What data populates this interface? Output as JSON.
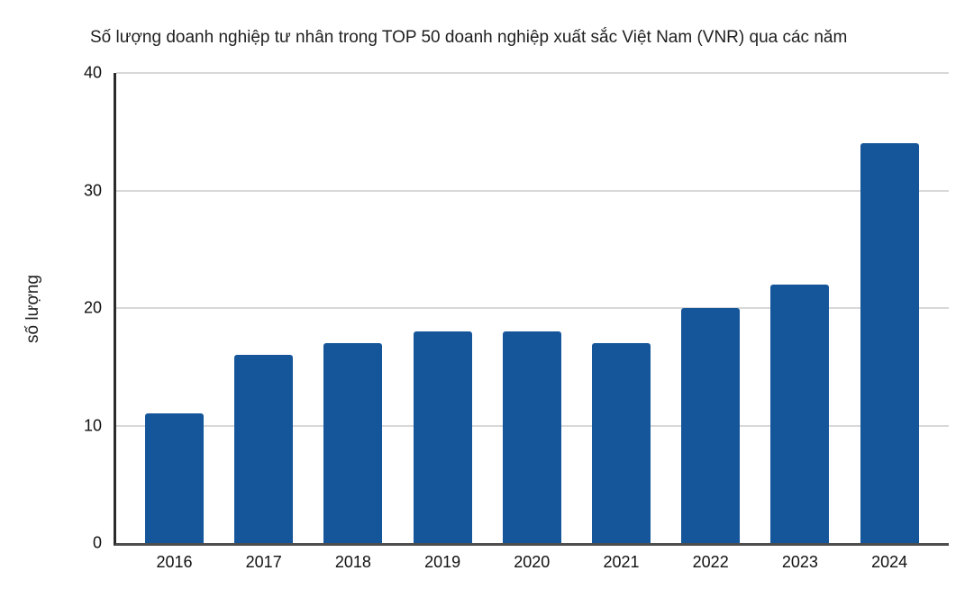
{
  "chart_data": {
    "type": "bar",
    "title": "Số lượng doanh nghiệp tư nhân trong TOP 50 doanh nghiệp xuất sắc Việt Nam (VNR) qua các năm",
    "xlabel": "",
    "ylabel": "số lượng",
    "categories": [
      "2016",
      "2017",
      "2018",
      "2019",
      "2020",
      "2021",
      "2022",
      "2023",
      "2024"
    ],
    "values": [
      11,
      16,
      17,
      18,
      18,
      17,
      20,
      22,
      34
    ],
    "ylim": [
      0,
      40
    ],
    "yticks": [
      0,
      10,
      20,
      30,
      40
    ],
    "grid": true,
    "legend": false,
    "colors": {
      "bar": "#15569B",
      "gridline": "#D8D8D8",
      "axis": "#3C3C3C",
      "text": "#1F1F1F",
      "background": "#FFFFFF"
    }
  }
}
